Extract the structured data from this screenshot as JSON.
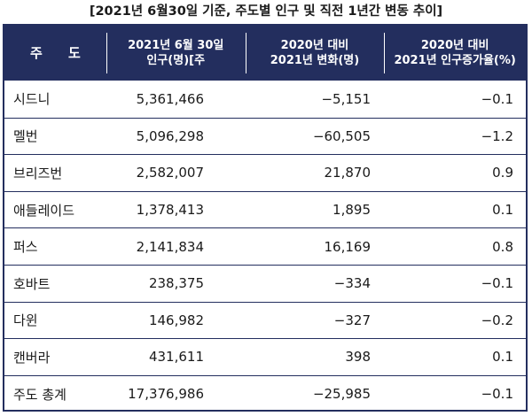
{
  "title": "[2021년 6월30일 기준, 주도별 인구 및 직전 1년간 변동 추이]",
  "header": {
    "col0": "주 도",
    "col1_line1": "2021년 6월 30일",
    "col1_line2": "인구(명)[주",
    "col2_line1": "2020년 대비",
    "col2_line2": "2021년 변화(명)",
    "col3_line1": "2020년 대비",
    "col3_line2": "2021년 인구증가율(%)"
  },
  "rows": [
    {
      "name": "시드니",
      "population": "5,361,466",
      "change": "−5,151",
      "rate": "−0.1"
    },
    {
      "name": "멜번",
      "population": "5,096,298",
      "change": "−60,505",
      "rate": "−1.2"
    },
    {
      "name": "브리즈번",
      "population": "2,582,007",
      "change": "21,870",
      "rate": "0.9"
    },
    {
      "name": "애들레이드",
      "population": "1,378,413",
      "change": "1,895",
      "rate": "0.1"
    },
    {
      "name": "퍼스",
      "population": "2,141,834",
      "change": "16,169",
      "rate": "0.8"
    },
    {
      "name": "호바트",
      "population": "238,375",
      "change": "−334",
      "rate": "−0.1"
    },
    {
      "name": "다윈",
      "population": "146,982",
      "change": "−327",
      "rate": "−0.2"
    },
    {
      "name": "캔버라",
      "population": "431,611",
      "change": "398",
      "rate": "0.1"
    },
    {
      "name": "주도 총계",
      "population": "17,376,986",
      "change": "−25,985",
      "rate": "−0.1"
    }
  ],
  "colors": {
    "header_bg": "#232e5e",
    "header_text": "#ffffff",
    "border": "#232e5e"
  }
}
